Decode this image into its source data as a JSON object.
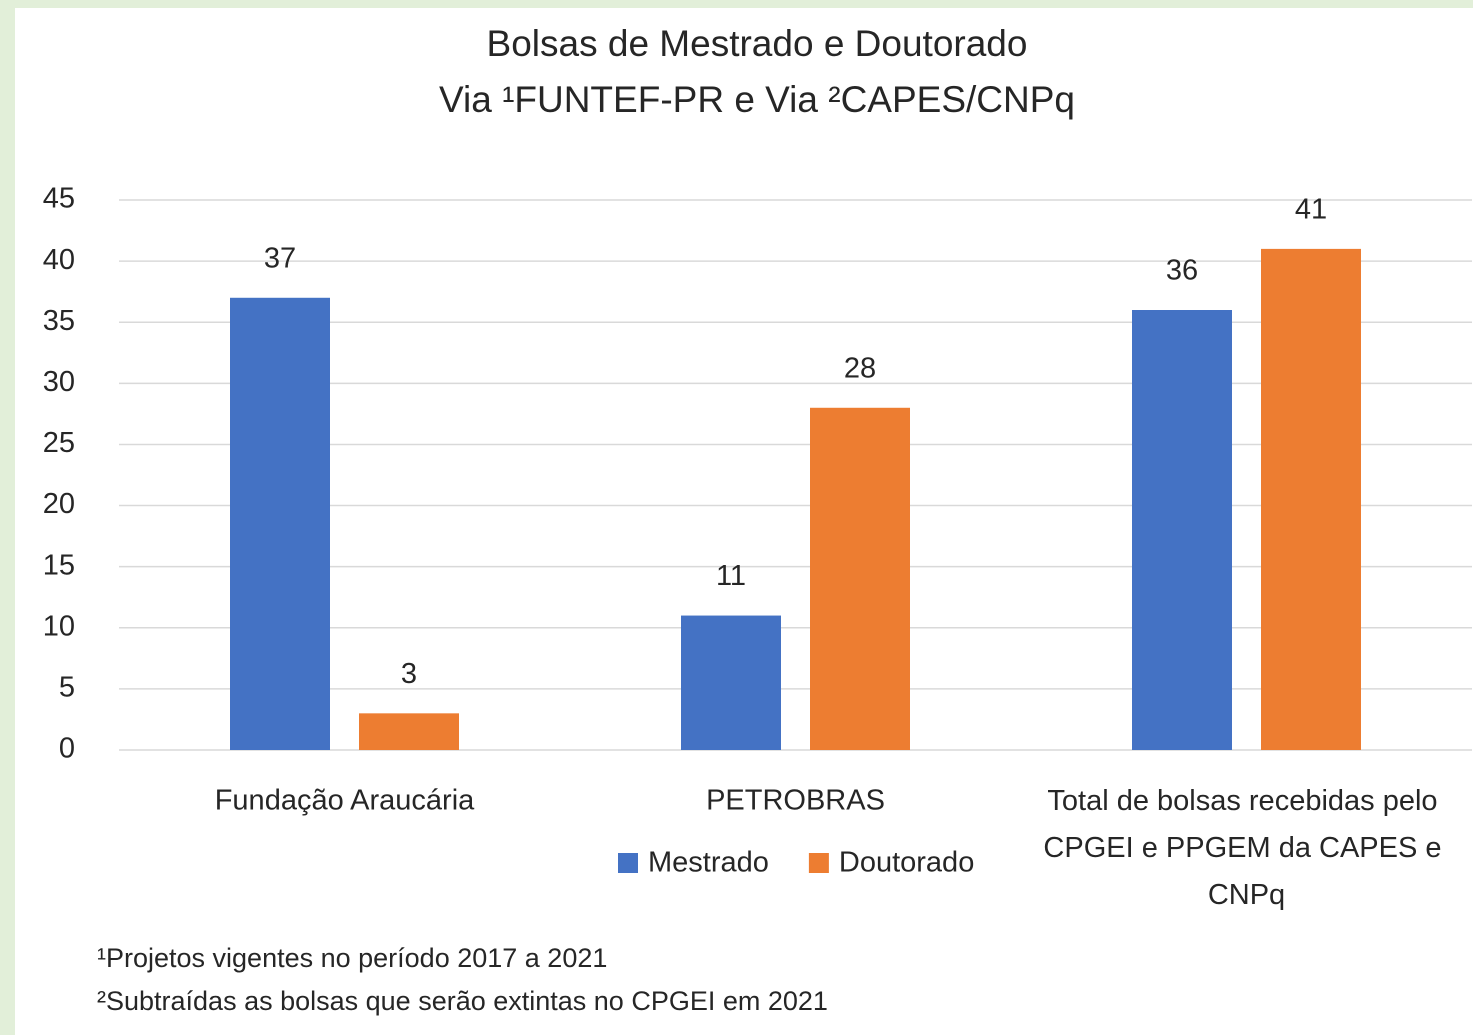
{
  "chart_data": {
    "type": "bar",
    "title": "Bolsas de Mestrado e Doutorado",
    "subtitle": "Via ¹FUNTEF-PR e Via ²CAPES/CNPq",
    "categories": [
      "Fundação Araucária",
      "PETROBRAS",
      "Total de bolsas recebidas pelo CPGEI e PPGEM da CAPES e CNPq"
    ],
    "series": [
      {
        "name": "Mestrado",
        "color": "#4472c4",
        "values": [
          37,
          11,
          36
        ]
      },
      {
        "name": "Doutorado",
        "color": "#ed7d31",
        "values": [
          3,
          28,
          41
        ]
      }
    ],
    "ylim": [
      0,
      45
    ],
    "yticks": [
      0,
      5,
      10,
      15,
      20,
      25,
      30,
      35,
      40,
      45
    ],
    "grid": true,
    "legend": "bottom",
    "notes": [
      "¹Projetos vigentes no período 2017 a 2021",
      "²Subtraídas as bolsas que serão extintas no CPGEI em 2021"
    ]
  }
}
